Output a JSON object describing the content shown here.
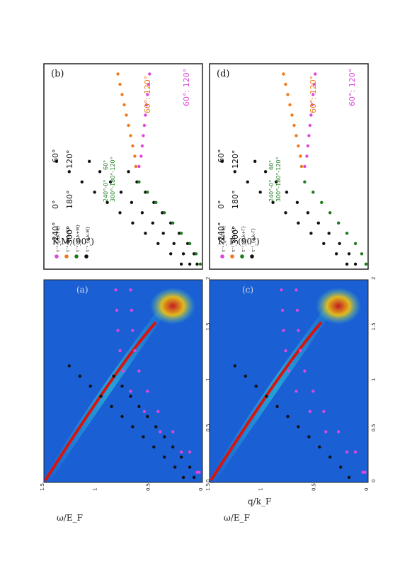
{
  "figure": {
    "rotation": "90deg counter-clockwise",
    "xlabel": "q/k_F",
    "ylabel": "ω/E_F",
    "colors": {
      "heatmap_bg": "#1a5fd4",
      "peak": "#d8140c",
      "black": "#111111",
      "green": "#1c7a1c",
      "orange": "#f07a1a",
      "magenta": "#dc47dc"
    }
  },
  "chart_data": [
    {
      "id": "a",
      "panel_label": "(a)",
      "type": "heatmap",
      "xlabel": "q/k_F",
      "ylabel": "ω/E_F",
      "xlim": [
        0,
        2
      ],
      "ylim": [
        0,
        1.5
      ],
      "xticks": [
        "0",
        "0.5",
        "1",
        "1.5",
        "2"
      ],
      "yticks": [
        "0",
        "0.5",
        "1",
        "1.5"
      ],
      "series": [
        {
          "color": "black",
          "x": [
            0.05,
            0.15,
            0.25,
            0.35,
            0.45,
            0.55,
            0.65,
            0.75,
            0.85,
            0.95,
            1.05,
            1.15
          ],
          "y": [
            0.18,
            0.26,
            0.36,
            0.46,
            0.56,
            0.66,
            0.76,
            0.86,
            0.96,
            1.06,
            1.16,
            1.26
          ]
        },
        {
          "color": "black",
          "x": [
            0.05,
            0.15,
            0.25,
            0.35,
            0.45,
            0.55,
            0.65,
            0.75,
            0.85,
            0.95,
            1.05
          ],
          "y": [
            0.08,
            0.12,
            0.2,
            0.28,
            0.36,
            0.44,
            0.52,
            0.6,
            0.68,
            0.76,
            0.84
          ]
        },
        {
          "color": "magenta",
          "x": [
            0.1,
            0.3,
            0.5,
            0.7,
            0.9,
            1.1,
            1.3,
            1.5,
            1.7,
            1.9
          ],
          "y": [
            0.05,
            0.2,
            0.4,
            0.55,
            0.68,
            0.75,
            0.78,
            0.8,
            0.81,
            0.82
          ]
        },
        {
          "color": "magenta",
          "x": [
            0.1,
            0.3,
            0.5,
            0.7,
            0.9,
            1.1,
            1.3,
            1.5,
            1.7,
            1.9
          ],
          "y": [
            0.03,
            0.12,
            0.28,
            0.42,
            0.52,
            0.6,
            0.64,
            0.66,
            0.67,
            0.68
          ]
        }
      ]
    },
    {
      "id": "b",
      "panel_label": "(b)",
      "type": "scatter",
      "title": "K-M (90°)",
      "legend": [
        "τ⁻¹_{d,k+K}",
        "τ⁻¹_{d,k-K}",
        "τ⁻¹_{d,k+M}",
        "τ⁻¹_{d,k-M}"
      ],
      "legend_colors": [
        "magenta",
        "orange",
        "green",
        "black"
      ],
      "annotations": [
        "240°",
        "0°",
        "60°",
        "300°",
        "180°",
        "120°",
        "240°-0°",
        "60°",
        "300°-180°-120°",
        "60°: 120°",
        "60°: 120°"
      ],
      "series": [
        {
          "color": "black",
          "x": [
            0.05,
            0.15,
            0.25,
            0.35,
            0.45,
            0.55,
            0.65,
            0.75,
            0.85,
            0.95,
            1.05
          ],
          "y": [
            0.2,
            0.3,
            0.42,
            0.54,
            0.66,
            0.78,
            0.9,
            1.02,
            1.14,
            1.26,
            1.38
          ]
        },
        {
          "color": "black",
          "x": [
            0.05,
            0.15,
            0.25,
            0.35,
            0.45,
            0.55,
            0.65,
            0.75,
            0.85,
            0.95,
            1.05
          ],
          "y": [
            0.12,
            0.18,
            0.27,
            0.37,
            0.47,
            0.57,
            0.67,
            0.77,
            0.87,
            0.97,
            1.07
          ]
        },
        {
          "color": "black",
          "x": [
            0.05,
            0.15,
            0.25,
            0.35,
            0.45,
            0.55,
            0.65,
            0.75,
            0.85,
            0.95
          ],
          "y": [
            0.05,
            0.08,
            0.14,
            0.22,
            0.3,
            0.38,
            0.46,
            0.54,
            0.62,
            0.7
          ]
        },
        {
          "color": "orange",
          "x": [
            1.0,
            1.1,
            1.2,
            1.3,
            1.4,
            1.5,
            1.6,
            1.7,
            1.8,
            1.9
          ],
          "y": [
            0.63,
            0.64,
            0.66,
            0.68,
            0.7,
            0.72,
            0.74,
            0.76,
            0.78,
            0.8
          ]
        },
        {
          "color": "magenta",
          "x": [
            1.0,
            1.1,
            1.2,
            1.3,
            1.4,
            1.5,
            1.6,
            1.7,
            1.8,
            1.9
          ],
          "y": [
            0.6,
            0.58,
            0.57,
            0.56,
            0.55,
            0.54,
            0.53,
            0.52,
            0.51,
            0.5
          ]
        },
        {
          "color": "green",
          "x": [
            0.05,
            0.15,
            0.25,
            0.35,
            0.45,
            0.55,
            0.65,
            0.75,
            0.85
          ],
          "y": [
            0.02,
            0.06,
            0.12,
            0.2,
            0.28,
            0.36,
            0.44,
            0.52,
            0.6
          ]
        }
      ]
    },
    {
      "id": "c",
      "panel_label": "(c)",
      "type": "heatmap",
      "xlabel": "q/k_F",
      "ylabel": "ω/E_F",
      "xlim": [
        0,
        2
      ],
      "ylim": [
        0,
        1.5
      ],
      "xticks": [
        "0",
        "0.5",
        "1",
        "1.5",
        "2"
      ],
      "yticks": [
        "0",
        "0.5",
        "1",
        "1.5"
      ],
      "series": [
        {
          "color": "black",
          "x": [
            0.05,
            0.15,
            0.25,
            0.35,
            0.45,
            0.55,
            0.65,
            0.75,
            0.85,
            0.95,
            1.05,
            1.15
          ],
          "y": [
            0.18,
            0.26,
            0.36,
            0.46,
            0.56,
            0.66,
            0.76,
            0.86,
            0.96,
            1.06,
            1.16,
            1.26
          ]
        },
        {
          "color": "magenta",
          "x": [
            0.1,
            0.3,
            0.5,
            0.7,
            0.9,
            1.1,
            1.3,
            1.5,
            1.7,
            1.9
          ],
          "y": [
            0.05,
            0.2,
            0.4,
            0.55,
            0.68,
            0.75,
            0.78,
            0.8,
            0.81,
            0.82
          ]
        },
        {
          "color": "magenta",
          "x": [
            0.1,
            0.3,
            0.5,
            0.7,
            0.9,
            1.1,
            1.3,
            1.5,
            1.7,
            1.9
          ],
          "y": [
            0.03,
            0.12,
            0.28,
            0.42,
            0.52,
            0.6,
            0.64,
            0.66,
            0.67,
            0.68
          ]
        }
      ]
    },
    {
      "id": "d",
      "panel_label": "(d)",
      "type": "scatter",
      "title": "K- Γ (90°)",
      "legend": [
        "τ⁻¹_{d,k+K}",
        "τ⁻¹_{d,k-K}",
        "τ⁻¹_{d,k+Γ}",
        "τ⁻¹_{d,k-Γ}"
      ],
      "legend_colors": [
        "magenta",
        "orange",
        "green",
        "black"
      ],
      "annotations": [
        "240°",
        "0°",
        "60°",
        "300°",
        "180°",
        "120°",
        "240°-0°",
        "60°",
        "300°-180°-120°",
        "60°: 120°",
        "60°: 120°"
      ],
      "series": [
        {
          "color": "black",
          "x": [
            0.05,
            0.15,
            0.25,
            0.35,
            0.45,
            0.55,
            0.65,
            0.75,
            0.85,
            0.95,
            1.05
          ],
          "y": [
            0.2,
            0.3,
            0.42,
            0.54,
            0.66,
            0.78,
            0.9,
            1.02,
            1.14,
            1.26,
            1.38
          ]
        },
        {
          "color": "black",
          "x": [
            0.05,
            0.15,
            0.25,
            0.35,
            0.45,
            0.55,
            0.65,
            0.75,
            0.85,
            0.95,
            1.05
          ],
          "y": [
            0.12,
            0.18,
            0.27,
            0.37,
            0.47,
            0.57,
            0.67,
            0.77,
            0.87,
            0.97,
            1.07
          ]
        },
        {
          "color": "orange",
          "x": [
            1.0,
            1.1,
            1.2,
            1.3,
            1.4,
            1.5,
            1.6,
            1.7,
            1.8,
            1.9
          ],
          "y": [
            0.63,
            0.64,
            0.66,
            0.68,
            0.7,
            0.72,
            0.74,
            0.76,
            0.78,
            0.8
          ]
        },
        {
          "color": "magenta",
          "x": [
            1.0,
            1.1,
            1.2,
            1.3,
            1.4,
            1.5,
            1.6,
            1.7,
            1.8,
            1.9
          ],
          "y": [
            0.6,
            0.58,
            0.57,
            0.56,
            0.55,
            0.54,
            0.53,
            0.52,
            0.51,
            0.5
          ]
        },
        {
          "color": "green",
          "x": [
            0.05,
            0.15,
            0.25,
            0.35,
            0.45,
            0.55,
            0.65,
            0.75,
            0.85
          ],
          "y": [
            0.02,
            0.06,
            0.12,
            0.2,
            0.28,
            0.36,
            0.44,
            0.52,
            0.6
          ]
        }
      ]
    }
  ]
}
